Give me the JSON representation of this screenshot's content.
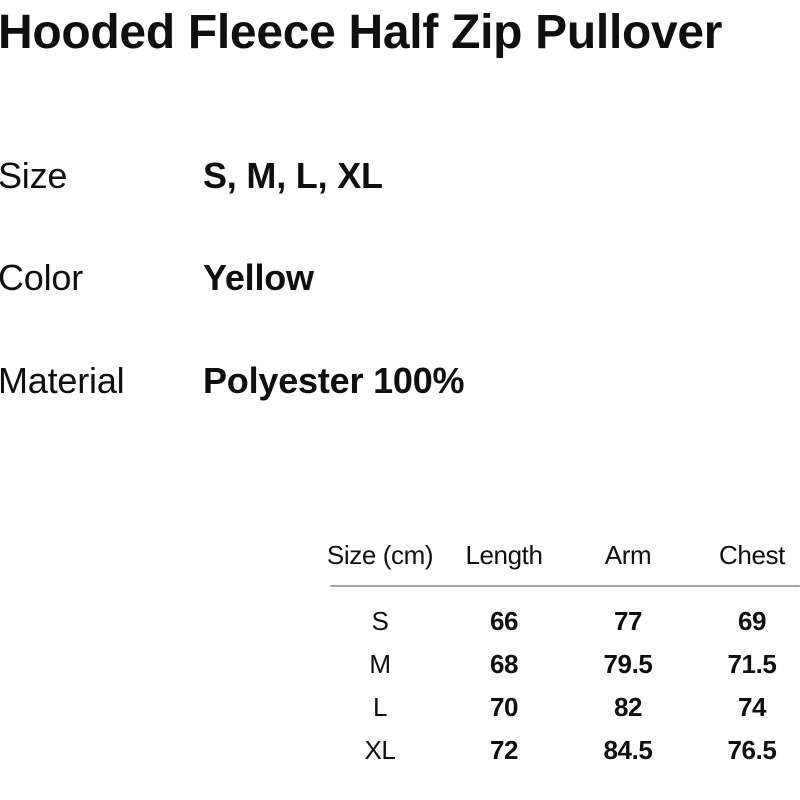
{
  "page": {
    "background": "#ffffff",
    "text_color": "#0f0f0f"
  },
  "product": {
    "title": "Hooded Fleece Half Zip Pullover",
    "specs": [
      {
        "label": "Size",
        "value": "S, M, L, XL"
      },
      {
        "label": "Color",
        "value": "Yellow"
      },
      {
        "label": "Material",
        "value": "Polyester 100%"
      }
    ]
  },
  "size_chart": {
    "type": "table",
    "columns": [
      "Size (cm)",
      "Length",
      "Arm",
      "Chest"
    ],
    "rows": [
      [
        "S",
        "66",
        "77",
        "69"
      ],
      [
        "M",
        "68",
        "79.5",
        "71.5"
      ],
      [
        "L",
        "70",
        "82",
        "74"
      ],
      [
        "XL",
        "72",
        "84.5",
        "76.5"
      ]
    ],
    "divider_color": "#a2a2a2"
  }
}
